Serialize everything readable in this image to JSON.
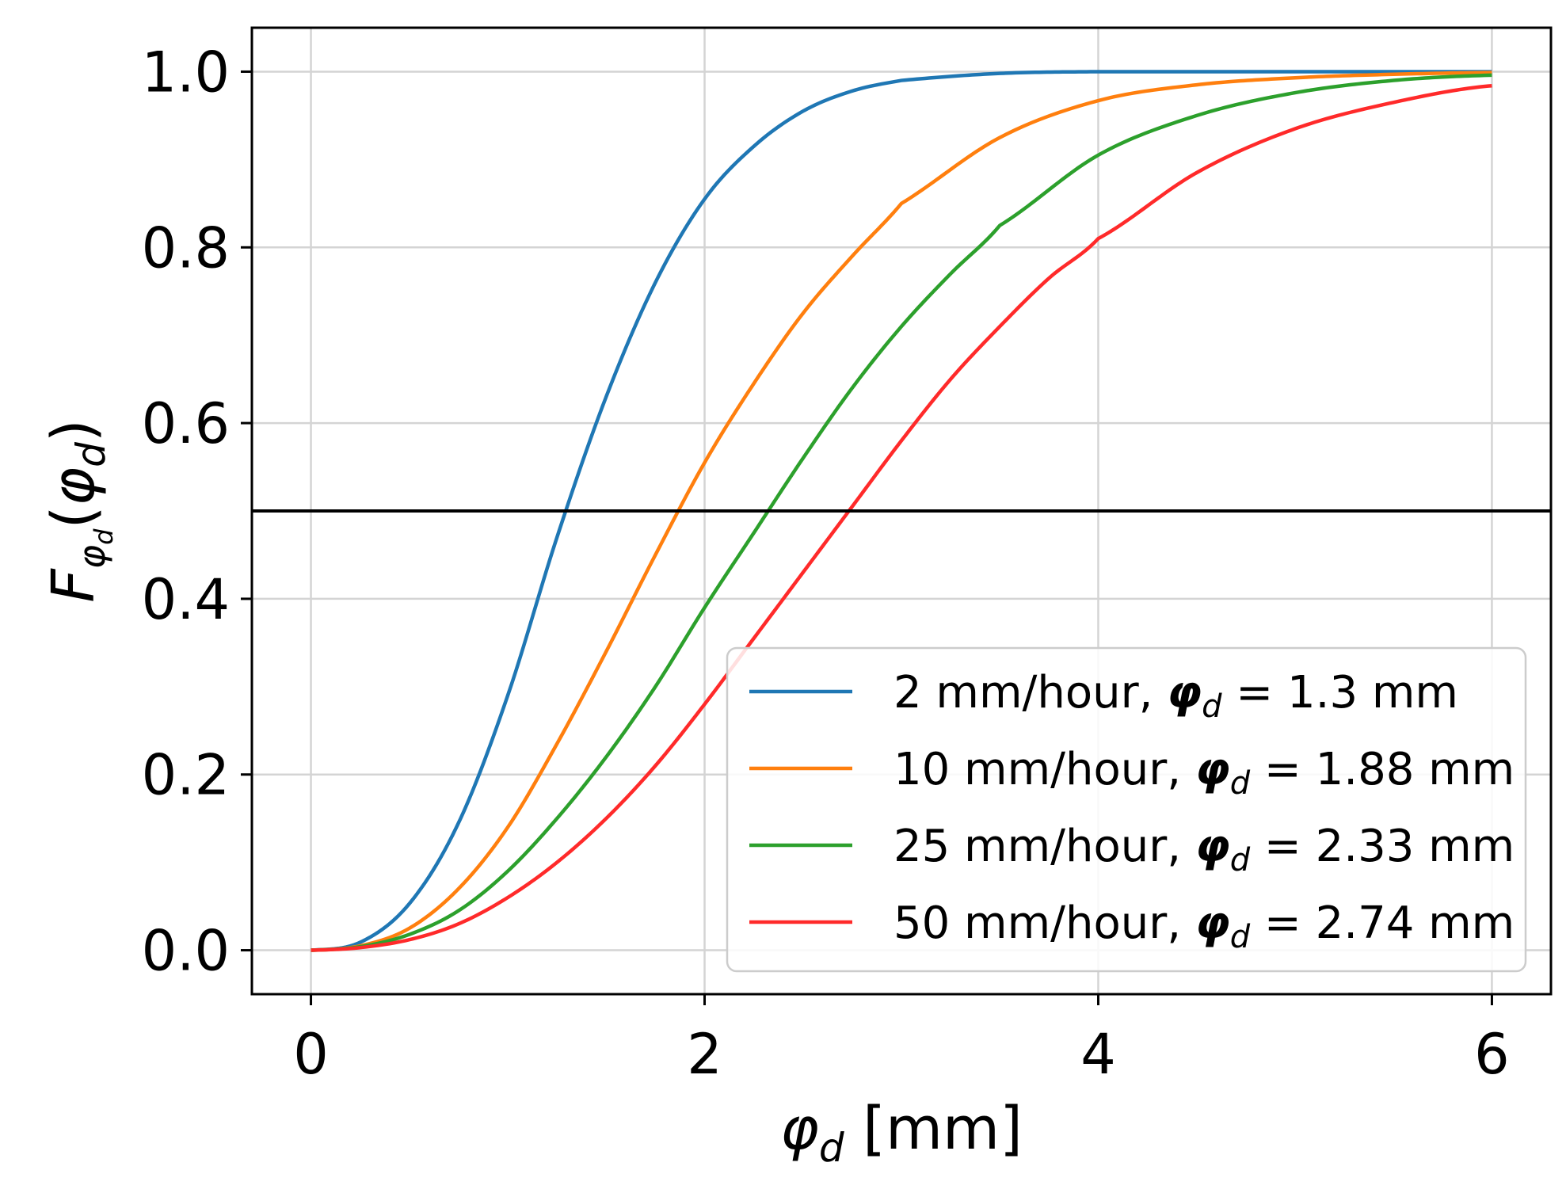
{
  "chart_data": {
    "type": "line",
    "title": "",
    "xlabel": {
      "sym": "φ",
      "sub": "d",
      "unit": " [mm]"
    },
    "ylabel": {
      "F": "F",
      "sub_phi": "φ",
      "sub_d": "d",
      "open": "(",
      "arg_phi": "φ",
      "arg_sub": "d",
      "close": ")"
    },
    "xlim": [
      -0.3,
      6.3
    ],
    "ylim": [
      -0.05,
      1.05
    ],
    "xticks": [
      0,
      2,
      4,
      6
    ],
    "xtick_labels": [
      "0",
      "2",
      "4",
      "6"
    ],
    "yticks": [
      0.0,
      0.2,
      0.4,
      0.6,
      0.8,
      1.0
    ],
    "ytick_labels": [
      "0.0",
      "0.2",
      "0.4",
      "0.6",
      "0.8",
      "1.0"
    ],
    "grid": true,
    "hline": 0.5,
    "legend_position": "lower-right",
    "x_range": [
      0,
      6
    ],
    "series": [
      {
        "name": "2 mm/hour, φd = 1.3 mm",
        "prefix": "2 mm/hour, ",
        "phi": "φ",
        "sub": "d",
        "suffix": " = 1.3 mm",
        "median": 1.3,
        "color": "#1f77b4",
        "x": [
          0,
          0.25,
          0.5,
          0.75,
          1.0,
          1.25,
          1.5,
          1.75,
          2.0,
          2.25,
          2.5,
          2.75,
          3.0,
          3.5,
          4.0,
          5.0,
          6.0
        ],
        "y": [
          0.0,
          0.009,
          0.053,
          0.145,
          0.29,
          0.47,
          0.63,
          0.76,
          0.855,
          0.915,
          0.955,
          0.978,
          0.99,
          0.998,
          1.0,
          1.0,
          1.0
        ]
      },
      {
        "name": "10 mm/hour, φd = 1.88 mm",
        "prefix": "10 mm/hour, ",
        "phi": "φ",
        "sub": "d",
        "suffix": " = 1.88 mm",
        "median": 1.88,
        "color": "#ff7f0e",
        "x": [
          0,
          0.25,
          0.5,
          0.75,
          1.0,
          1.25,
          1.5,
          1.75,
          2.0,
          2.25,
          2.5,
          2.75,
          3.0,
          3.5,
          4.0,
          4.5,
          5.0,
          5.5,
          6.0
        ],
        "y": [
          0.0,
          0.005,
          0.025,
          0.07,
          0.14,
          0.235,
          0.34,
          0.45,
          0.555,
          0.645,
          0.725,
          0.79,
          0.85,
          0.925,
          0.967,
          0.985,
          0.993,
          0.997,
          0.999
        ]
      },
      {
        "name": "25 mm/hour, φd = 2.33 mm",
        "prefix": "25 mm/hour, ",
        "phi": "φ",
        "sub": "d",
        "suffix": " = 2.33 mm",
        "median": 2.33,
        "color": "#2ca02c",
        "x": [
          0,
          0.25,
          0.5,
          0.75,
          1.0,
          1.25,
          1.5,
          1.75,
          2.0,
          2.25,
          2.5,
          2.75,
          3.0,
          3.25,
          3.5,
          4.0,
          4.5,
          5.0,
          5.5,
          6.0
        ],
        "y": [
          0.0,
          0.004,
          0.018,
          0.045,
          0.09,
          0.15,
          0.22,
          0.3,
          0.39,
          0.475,
          0.56,
          0.64,
          0.71,
          0.77,
          0.825,
          0.905,
          0.95,
          0.976,
          0.99,
          0.996
        ]
      },
      {
        "name": "50 mm/hour, φd = 2.74 mm",
        "prefix": "50 mm/hour, ",
        "phi": "φ",
        "sub": "d",
        "suffix": " = 2.74 mm",
        "median": 2.74,
        "color": "#ff2a2a",
        "x": [
          0,
          0.25,
          0.5,
          0.75,
          1.0,
          1.25,
          1.5,
          1.75,
          2.0,
          2.25,
          2.5,
          2.75,
          3.0,
          3.25,
          3.5,
          3.75,
          4.0,
          4.5,
          5.0,
          5.5,
          6.0
        ],
        "y": [
          0.0,
          0.003,
          0.012,
          0.03,
          0.06,
          0.1,
          0.15,
          0.21,
          0.28,
          0.355,
          0.43,
          0.505,
          0.58,
          0.65,
          0.71,
          0.765,
          0.81,
          0.885,
          0.935,
          0.965,
          0.984
        ]
      }
    ]
  }
}
